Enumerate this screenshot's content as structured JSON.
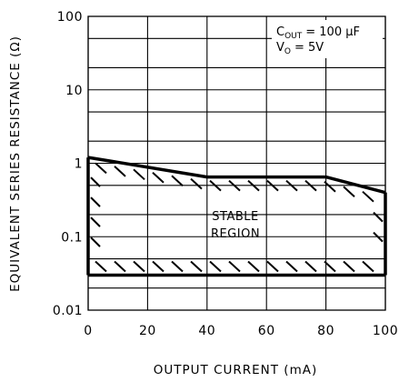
{
  "chart_data": {
    "type": "area",
    "xlabel": "OUTPUT CURRENT (mA)",
    "ylabel": "EQUIVALENT SERIES RESISTANCE (Ω)",
    "xlim": [
      0,
      100
    ],
    "ylim": [
      0.01,
      100
    ],
    "y_scale": "log",
    "grid": true,
    "x_ticks": [
      0,
      20,
      40,
      60,
      80,
      100
    ],
    "x_tick_labels": [
      "0",
      "20",
      "40",
      "60",
      "80",
      "100"
    ],
    "y_ticks": [
      0.01,
      0.1,
      1,
      10,
      100
    ],
    "y_tick_labels": [
      "0.01",
      "0.1",
      "1",
      "10",
      "100"
    ],
    "annotation": {
      "cout_symbol": "C",
      "cout_subscript": "OUT",
      "cout_value": "= 100 μF",
      "vo_symbol": "V",
      "vo_subscript": "O",
      "vo_value": "= 5V"
    },
    "region_label_line1": "STABLE",
    "region_label_line2": "REGION",
    "series": [
      {
        "x": [
          0,
          40,
          80,
          100
        ],
        "y": [
          1.2,
          0.65,
          0.65,
          0.4
        ]
      },
      {
        "x": [
          0,
          100
        ],
        "y": [
          0.03,
          0.03
        ]
      }
    ]
  }
}
